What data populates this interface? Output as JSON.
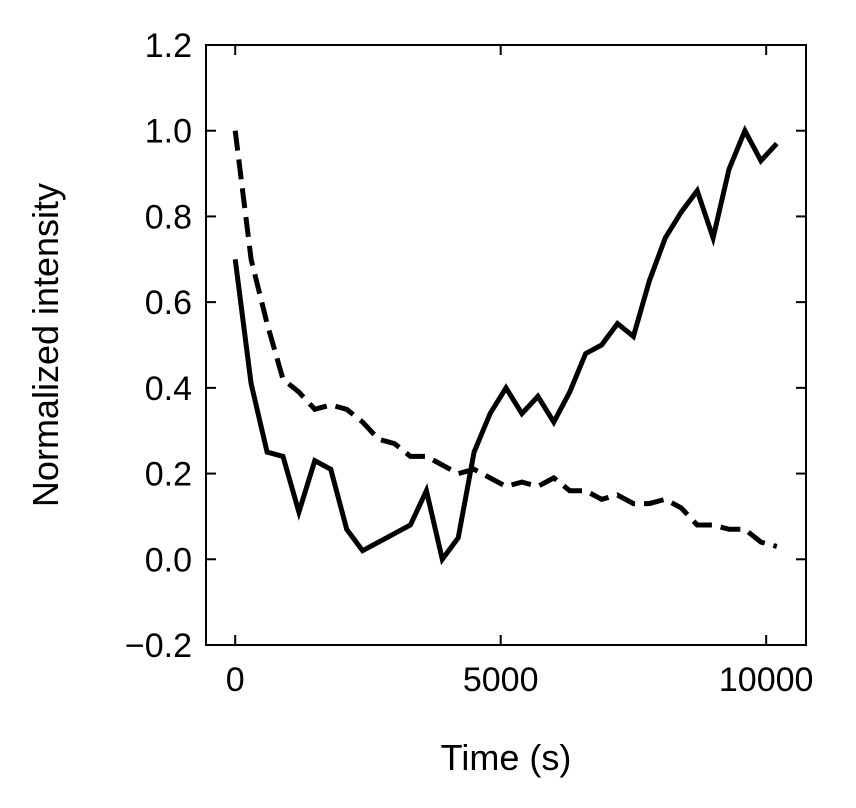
{
  "chart_data": {
    "type": "line",
    "title": "",
    "xlabel": "Time (s)",
    "ylabel": "Normalized intensity",
    "xlim": [
      -550,
      10750
    ],
    "ylim": [
      -0.2,
      1.2
    ],
    "xticks": [
      0,
      5000,
      10000
    ],
    "xtick_labels": [
      "0",
      "5000",
      "10000"
    ],
    "yticks": [
      -0.2,
      0.0,
      0.2,
      0.4,
      0.6,
      0.8,
      1.0,
      1.2
    ],
    "ytick_labels": [
      "−0.2",
      "0.0",
      "0.2",
      "0.4",
      "0.6",
      "0.8",
      "1.0",
      "1.2"
    ],
    "grid": false,
    "legend": false,
    "series": [
      {
        "style": "solid",
        "color": "#000000",
        "x": [
          0,
          300,
          600,
          900,
          1200,
          1500,
          1800,
          2100,
          2400,
          2700,
          3000,
          3300,
          3600,
          3900,
          4200,
          4500,
          4800,
          5100,
          5400,
          5700,
          6000,
          6300,
          6600,
          6900,
          7200,
          7500,
          7800,
          8100,
          8400,
          8700,
          9000,
          9300,
          9600,
          9900,
          10200
        ],
        "y": [
          0.7,
          0.41,
          0.25,
          0.24,
          0.11,
          0.23,
          0.21,
          0.07,
          0.02,
          0.04,
          0.06,
          0.08,
          0.16,
          0.0,
          0.05,
          0.25,
          0.34,
          0.4,
          0.34,
          0.38,
          0.32,
          0.39,
          0.48,
          0.5,
          0.55,
          0.52,
          0.65,
          0.75,
          0.81,
          0.86,
          0.75,
          0.91,
          1.0,
          0.93,
          0.97
        ]
      },
      {
        "style": "dashed",
        "color": "#000000",
        "x": [
          0,
          300,
          600,
          900,
          1200,
          1500,
          1800,
          2100,
          2400,
          2700,
          3000,
          3300,
          3600,
          3900,
          4200,
          4500,
          4800,
          5100,
          5400,
          5700,
          6000,
          6300,
          6600,
          6900,
          7200,
          7500,
          7800,
          8100,
          8400,
          8700,
          9000,
          9300,
          9600,
          9900,
          10200
        ],
        "y": [
          1.0,
          0.7,
          0.55,
          0.42,
          0.39,
          0.35,
          0.36,
          0.35,
          0.32,
          0.28,
          0.27,
          0.24,
          0.24,
          0.22,
          0.2,
          0.21,
          0.19,
          0.17,
          0.18,
          0.17,
          0.19,
          0.16,
          0.16,
          0.14,
          0.15,
          0.13,
          0.13,
          0.14,
          0.12,
          0.08,
          0.08,
          0.07,
          0.07,
          0.04,
          0.03
        ]
      }
    ]
  }
}
